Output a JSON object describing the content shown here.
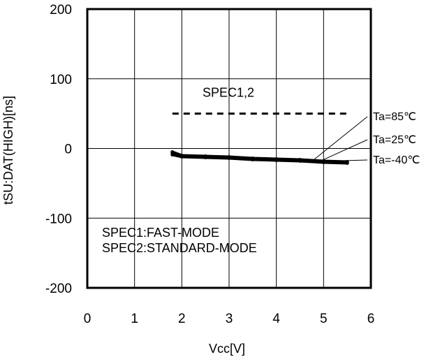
{
  "chart_data": {
    "type": "line",
    "title": "",
    "xlabel": "Vcc[V]",
    "ylabel": "tSU:DAT(HIGH)[ns]",
    "xlim": [
      0,
      6
    ],
    "ylim": [
      -200,
      200
    ],
    "x_ticks": [
      "0",
      "1",
      "2",
      "3",
      "4",
      "5",
      "6"
    ],
    "y_ticks": [
      "200",
      "100",
      "0",
      "-100",
      "-200"
    ],
    "grid": true,
    "spec_line": {
      "label": "SPEC1,2",
      "y": 50,
      "x_range": [
        1.8,
        5.5
      ]
    },
    "series": [
      {
        "name": "Ta=85℃",
        "x": [
          1.8,
          2.0,
          2.5,
          3.0,
          3.5,
          4.0,
          4.5,
          5.0,
          5.5
        ],
        "y": [
          -5,
          -10,
          -11,
          -12,
          -14,
          -15,
          -16,
          -18,
          -19
        ]
      },
      {
        "name": "Ta=25℃",
        "x": [
          1.8,
          2.0,
          2.5,
          3.0,
          3.5,
          4.0,
          4.5,
          5.0,
          5.5
        ],
        "y": [
          -7,
          -11,
          -12,
          -13,
          -15,
          -16,
          -17,
          -19,
          -20
        ]
      },
      {
        "name": "Ta=-40℃",
        "x": [
          1.8,
          2.0,
          2.5,
          3.0,
          3.5,
          4.0,
          4.5,
          5.0,
          5.5
        ],
        "y": [
          -9,
          -12,
          -13,
          -14,
          -16,
          -17,
          -18,
          -20,
          -21
        ]
      }
    ],
    "annotations": [
      "SPEC1:FAST-MODE",
      "SPEC2:STANDARD-MODE"
    ]
  }
}
